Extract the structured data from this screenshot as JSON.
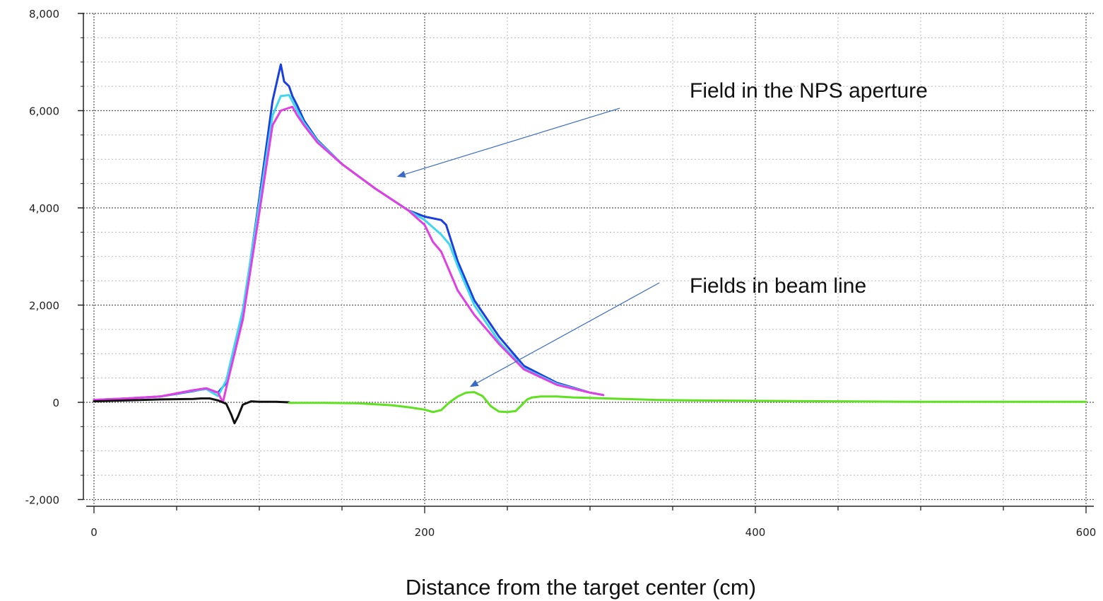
{
  "chart_data": {
    "type": "line",
    "title": "",
    "xlabel": "Distance from the target center (cm)",
    "ylabel": "",
    "xlim": [
      0,
      600
    ],
    "ylim": [
      -2000,
      8000
    ],
    "x_ticks": [
      0,
      200,
      400,
      600
    ],
    "x_tick_labels": [
      "0",
      "200",
      "400",
      "600"
    ],
    "y_ticks": [
      8000,
      6000,
      4000,
      2000,
      0,
      -2000
    ],
    "y_tick_labels": [
      "8,000",
      "6,000",
      "4,000",
      "2,000",
      "0",
      "-2,000"
    ],
    "grid": true,
    "legend": "none",
    "annotations": [
      {
        "text": "Field in the NPS aperture",
        "arrow_from": [
          318,
          6050
        ],
        "arrow_to": [
          184,
          4650
        ]
      },
      {
        "text": "Fields in beam line",
        "arrow_from": [
          342,
          2460
        ],
        "arrow_to": [
          228,
          330
        ]
      }
    ],
    "series": [
      {
        "color": "#1a3fe0",
        "x": [
          0,
          20,
          40,
          60,
          68,
          75,
          80,
          90,
          100,
          108,
          113,
          115,
          118,
          120,
          123,
          127,
          135,
          150,
          170,
          190,
          200,
          210,
          213,
          220,
          230,
          245,
          260,
          280,
          300,
          308
        ],
        "y": [
          50,
          80,
          120,
          230,
          280,
          200,
          400,
          1800,
          4200,
          6200,
          6950,
          6600,
          6500,
          6300,
          6100,
          5800,
          5400,
          4900,
          4400,
          3950,
          3820,
          3750,
          3650,
          2900,
          2100,
          1350,
          750,
          400,
          200,
          150
        ]
      },
      {
        "color": "#3fd6ef",
        "x": [
          0,
          20,
          40,
          60,
          68,
          75,
          80,
          90,
          100,
          108,
          113,
          118,
          123,
          127,
          135,
          150,
          170,
          190,
          200,
          210,
          215,
          220,
          230,
          245,
          260,
          280,
          300,
          308
        ],
        "y": [
          50,
          80,
          120,
          240,
          270,
          130,
          450,
          1900,
          4100,
          5900,
          6300,
          6320,
          6000,
          5750,
          5380,
          4900,
          4400,
          3950,
          3750,
          3450,
          3250,
          2800,
          2000,
          1250,
          700,
          380,
          200,
          150
        ]
      },
      {
        "color": "#e13fe4",
        "x": [
          0,
          20,
          40,
          60,
          68,
          75,
          78,
          80,
          90,
          100,
          108,
          113,
          120,
          123,
          127,
          135,
          150,
          170,
          190,
          200,
          205,
          210,
          220,
          230,
          245,
          260,
          280,
          300,
          308
        ],
        "y": [
          50,
          80,
          120,
          250,
          290,
          200,
          0,
          300,
          1700,
          3900,
          5700,
          6000,
          6080,
          5900,
          5700,
          5350,
          4900,
          4400,
          3950,
          3650,
          3300,
          3100,
          2300,
          1800,
          1200,
          680,
          360,
          200,
          150
        ]
      },
      {
        "color": "#111111",
        "x": [
          0,
          20,
          40,
          60,
          65,
          70,
          75,
          80,
          83,
          85,
          87,
          90,
          95,
          100,
          110,
          118
        ],
        "y": [
          20,
          40,
          60,
          70,
          80,
          80,
          40,
          -30,
          -250,
          -430,
          -300,
          -50,
          20,
          10,
          10,
          0
        ]
      },
      {
        "color": "#5fe021",
        "x": [
          118,
          140,
          160,
          170,
          180,
          190,
          200,
          205,
          210,
          215,
          220,
          225,
          230,
          235,
          240,
          245,
          250,
          255,
          258,
          262,
          265,
          270,
          280,
          290,
          300,
          310,
          320,
          340,
          360,
          400,
          450,
          500,
          550,
          600
        ],
        "y": [
          -10,
          -10,
          -20,
          -40,
          -60,
          -100,
          -150,
          -200,
          -160,
          0,
          120,
          200,
          210,
          130,
          -80,
          -190,
          -200,
          -180,
          -80,
          60,
          100,
          120,
          120,
          100,
          90,
          80,
          70,
          50,
          40,
          30,
          20,
          10,
          10,
          10
        ]
      }
    ]
  }
}
